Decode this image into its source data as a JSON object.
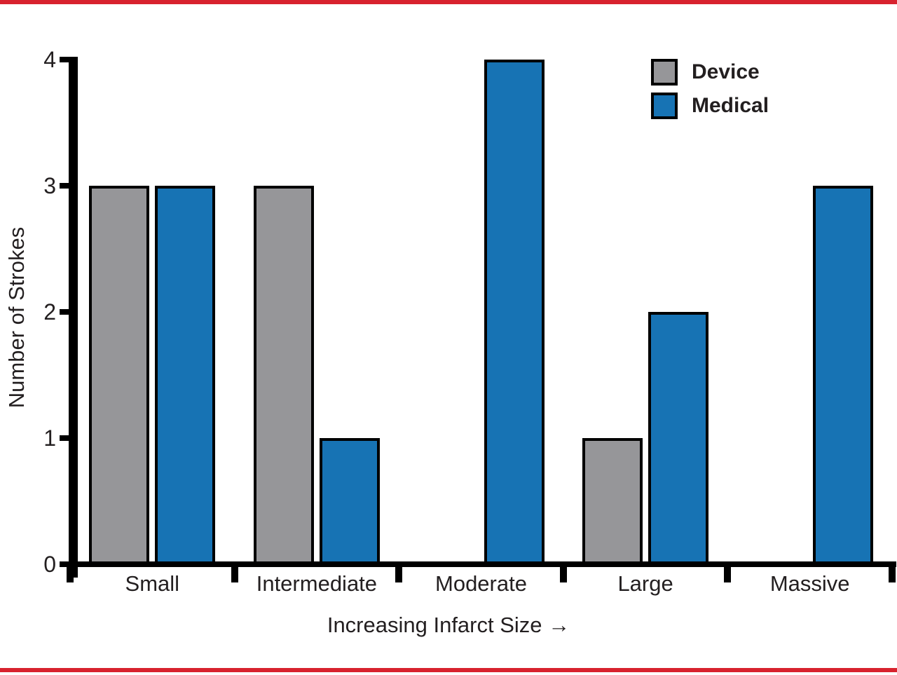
{
  "figure": {
    "rule_color": "#d8222e",
    "background": "#ffffff",
    "text_color": "#231f20"
  },
  "chart_data": {
    "type": "bar",
    "title": "",
    "categories": [
      "Small",
      "Intermediate",
      "Moderate",
      "Large",
      "Massive"
    ],
    "series": [
      {
        "name": "Device",
        "color": "#969699",
        "values": [
          3,
          3,
          0,
          1,
          0
        ]
      },
      {
        "name": "Medical",
        "color": "#1773b4",
        "values": [
          3,
          1,
          4,
          2,
          3
        ]
      }
    ],
    "xlabel": "Increasing Infarct Size →",
    "ylabel": "Number of Strokes",
    "ylim": [
      0,
      4
    ],
    "yticks": [
      "0",
      "1",
      "2",
      "3",
      "4"
    ],
    "grid": false,
    "legend_position": "top-right",
    "bar_border_color": "#000000",
    "axis_color": "#000000"
  }
}
